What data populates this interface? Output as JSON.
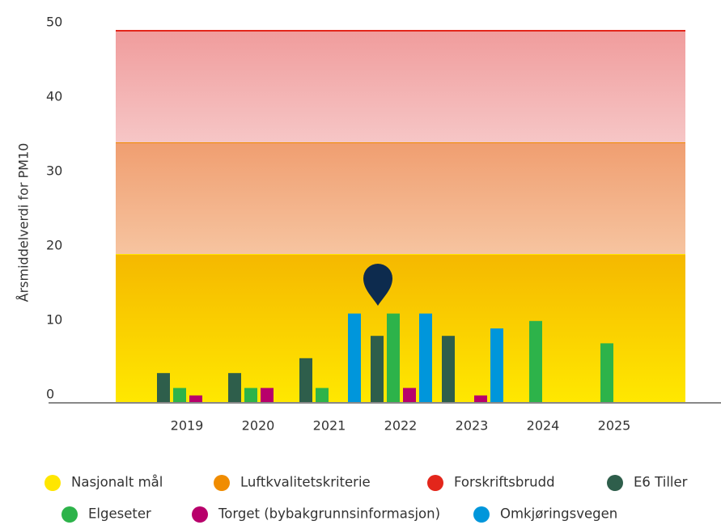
{
  "chart_data": {
    "type": "bar",
    "y_label": "Årsmiddelverdi for PM10",
    "categories": [
      "2019",
      "2020",
      "2021",
      "2022",
      "2023",
      "2024",
      "2025"
    ],
    "ylim": [
      0,
      50
    ],
    "yticks": [
      0,
      10,
      20,
      30,
      40,
      50
    ],
    "thresholds": [
      {
        "name": "Nasjonalt mål",
        "color": "#ffe600",
        "value": 20
      },
      {
        "name": "Luftkvalitetskriterie",
        "color": "#f08c00",
        "value": 35
      },
      {
        "name": "Forskriftsbrudd",
        "color": "#e3261b",
        "value": 50
      }
    ],
    "series": [
      {
        "name": "E6 Tiller",
        "color": "#2e5e4b",
        "values": [
          4,
          4,
          6,
          9,
          9,
          null,
          null
        ]
      },
      {
        "name": "Elgeseter",
        "color": "#2db34a",
        "values": [
          2,
          2,
          2,
          12,
          null,
          11,
          8
        ]
      },
      {
        "name": "Torget (bybakgrunnsinformasjon)",
        "color": "#b8006b",
        "values": [
          1,
          2,
          null,
          2,
          1,
          null,
          null
        ]
      },
      {
        "name": "Omkjøringsvegen",
        "color": "#0096db",
        "values": [
          null,
          null,
          12,
          12,
          10,
          null,
          null
        ]
      }
    ]
  }
}
